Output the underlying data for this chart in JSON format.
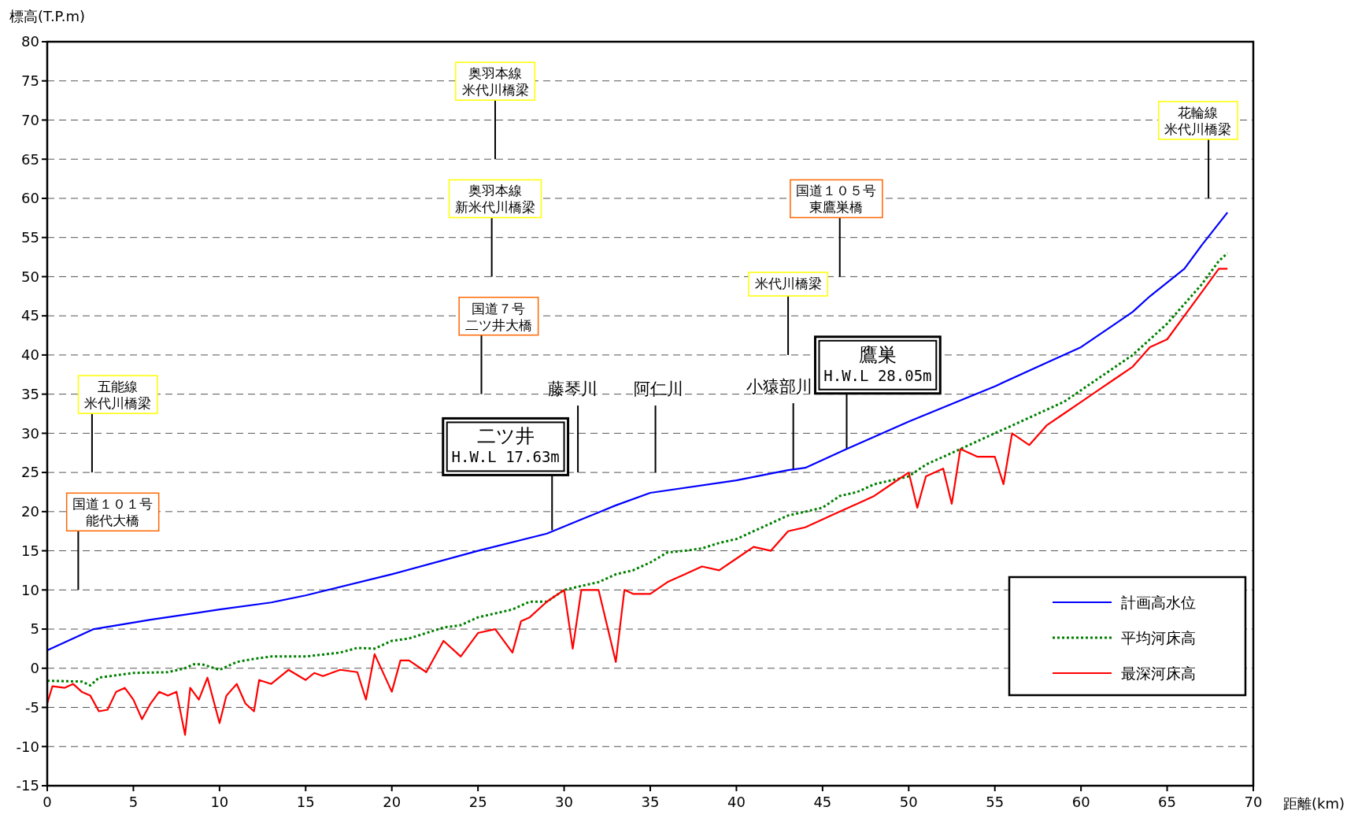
{
  "chart_data": {
    "type": "line",
    "xlabel": "距離(km)",
    "ylabel": "標高(T.P.m)",
    "xlim": [
      0,
      70
    ],
    "xticks": [
      0,
      5,
      10,
      15,
      20,
      25,
      30,
      35,
      40,
      45,
      50,
      55,
      60,
      65,
      70
    ],
    "ylim": [
      -15,
      80
    ],
    "yticks": [
      -15,
      -10,
      -5,
      0,
      5,
      10,
      15,
      20,
      25,
      30,
      35,
      40,
      45,
      50,
      55,
      60,
      65,
      70,
      75,
      80
    ],
    "grid": "y",
    "legend": "bottom right",
    "marker": "none",
    "series": [
      {
        "name": "計画高水位",
        "color": "#0000ff",
        "line_style": "solid",
        "x": [
          0,
          2.7,
          6,
          10,
          13,
          15,
          20,
          25,
          29,
          31,
          33,
          35,
          40,
          43,
          44,
          46.4,
          50,
          55,
          58,
          60,
          62,
          63,
          64,
          66,
          67,
          68.5
        ],
        "values": [
          2.3,
          5,
          6.2,
          7.5,
          8.4,
          9.3,
          12,
          15,
          17.2,
          19,
          20.8,
          22.4,
          24,
          25.3,
          25.6,
          28,
          31.5,
          36,
          39,
          41,
          44,
          45.5,
          47.5,
          51,
          54,
          58.2
        ]
      },
      {
        "name": "平均河床高",
        "color": "#008000",
        "line_style": "dotted",
        "x": [
          0,
          2,
          2.5,
          3,
          5,
          7,
          8,
          8.5,
          9,
          10,
          11,
          12,
          13,
          15,
          17,
          18,
          19,
          20,
          21,
          22,
          23,
          24,
          25,
          26,
          27,
          28,
          29,
          30,
          31,
          32,
          33,
          34,
          35,
          36,
          37,
          38,
          39,
          40,
          41,
          42,
          43,
          44,
          45,
          46,
          47,
          48,
          49,
          50,
          51,
          52,
          53,
          54,
          55,
          56,
          57,
          58,
          59,
          60,
          61,
          62,
          63,
          64,
          65,
          66,
          67,
          68,
          68.5
        ],
        "values": [
          -1.6,
          -1.7,
          -2.2,
          -1.2,
          -0.6,
          -0.5,
          0,
          0.5,
          0.5,
          -0.2,
          0.8,
          1.2,
          1.5,
          1.5,
          2,
          2.6,
          2.5,
          3.5,
          3.8,
          4.5,
          5.2,
          5.5,
          6.5,
          7,
          7.5,
          8.5,
          8.5,
          10,
          10.5,
          11,
          12,
          12.5,
          13.5,
          14.8,
          15,
          15.3,
          16,
          16.5,
          17.5,
          18.5,
          19.5,
          20,
          20.5,
          22,
          22.5,
          23.5,
          24,
          24.5,
          26,
          27,
          28,
          29,
          30,
          31,
          32,
          33,
          34,
          35.5,
          37,
          38.5,
          40,
          42,
          44,
          46.5,
          49,
          52,
          53
        ]
      },
      {
        "name": "最深河床高",
        "color": "#ff0000",
        "line_style": "solid",
        "x": [
          0,
          0.3,
          1,
          1.5,
          2,
          2.5,
          3,
          3.5,
          4,
          4.5,
          5,
          5.5,
          6,
          6.5,
          7,
          7.5,
          8,
          8.3,
          8.8,
          9.3,
          10,
          10.4,
          11,
          11.5,
          12,
          12.3,
          13,
          14,
          15,
          15.5,
          16,
          17,
          18,
          18.5,
          19,
          20,
          20.5,
          21,
          22,
          23,
          24,
          25,
          26,
          27,
          27.5,
          28,
          29,
          30,
          30.5,
          31,
          32,
          33,
          33.5,
          34,
          35,
          36,
          37,
          38,
          39,
          40,
          41,
          42,
          43,
          44,
          45,
          46,
          47,
          48,
          49,
          50,
          50.5,
          51,
          52,
          52.5,
          53,
          54,
          55,
          55.5,
          56,
          57,
          58,
          59,
          60,
          61,
          62,
          63,
          64,
          65,
          66,
          67,
          68,
          68.5
        ],
        "values": [
          -4.5,
          -2.3,
          -2.5,
          -2,
          -3,
          -3.5,
          -5.5,
          -5.3,
          -3,
          -2.5,
          -4,
          -6.5,
          -4.5,
          -3,
          -3.5,
          -3,
          -8.5,
          -2.5,
          -4,
          -1.2,
          -7,
          -3.5,
          -2,
          -4.5,
          -5.5,
          -1.5,
          -2,
          -0.2,
          -1.5,
          -0.6,
          -1,
          -0.2,
          -0.5,
          -4,
          1.8,
          -3,
          1,
          1,
          -0.5,
          3.5,
          1.5,
          4.5,
          5,
          2,
          6,
          6.5,
          8.5,
          10,
          2.5,
          10,
          10,
          0.8,
          10,
          9.5,
          9.5,
          11,
          12,
          13,
          12.5,
          14,
          15.5,
          15,
          17.5,
          18,
          19,
          20,
          21,
          22,
          23.5,
          25,
          20.5,
          24.5,
          25.5,
          21,
          28,
          27,
          27,
          23.5,
          30,
          28.5,
          31,
          32.5,
          34,
          35.5,
          37,
          38.5,
          41,
          42,
          45,
          48,
          51,
          51
        ]
      }
    ],
    "annotations": [
      "国道１０１号能代大橋",
      "五能線米代川橋梁",
      "国道７号二ツ井大橋",
      "奥羽本線新米代川橋梁",
      "奥羽本線米代川橋梁",
      {
        "text": "二ツ井\nH.W.L 17.63m",
        "x": 29.3,
        "y": 17.63
      },
      "藤琴川",
      "阿仁川",
      {
        "text": "小猿部川",
        "x": 43.3,
        "y": 25.3
      },
      "米代川橋梁",
      {
        "text": "鷹巣\nH.W.L 28.05m",
        "x": 46.4,
        "y": 28.05
      },
      "国道１０５号東鷹巣橋",
      "花輪線米代川橋梁"
    ]
  }
}
